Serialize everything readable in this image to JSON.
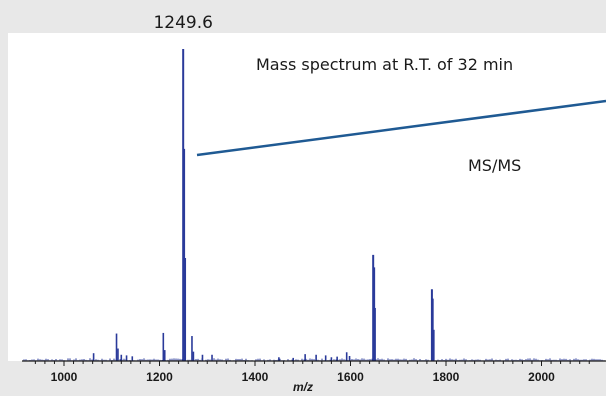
{
  "chart_data": {
    "type": "bar",
    "title": "",
    "xlabel": "m/z",
    "ylabel": "",
    "xlim": [
      900,
      2120
    ],
    "ylim": [
      0,
      100
    ],
    "grid": false,
    "x_ticks": [
      1000,
      1200,
      1400,
      1600,
      1800,
      2000
    ],
    "x_tick_labels": [
      "1000",
      "1200",
      "1400",
      "1600",
      "1800",
      "2000"
    ],
    "peak_label": {
      "x": 1249.6,
      "text": "1249.6"
    },
    "annotations": [
      {
        "text": "Mass spectrum at R.T. of 32 min"
      },
      {
        "text": "MS/MS"
      }
    ],
    "series": [
      {
        "color": "#2a3a9a",
        "peaks": [
          {
            "x": 1062,
            "y": 2.5
          },
          {
            "x": 1110,
            "y": 8.8
          },
          {
            "x": 1113,
            "y": 4.0
          },
          {
            "x": 1120,
            "y": 2.0
          },
          {
            "x": 1131,
            "y": 1.8
          },
          {
            "x": 1143,
            "y": 1.5
          },
          {
            "x": 1208,
            "y": 9.0
          },
          {
            "x": 1211,
            "y": 3.5
          },
          {
            "x": 1249.6,
            "y": 100
          },
          {
            "x": 1251.5,
            "y": 68
          },
          {
            "x": 1253.5,
            "y": 33
          },
          {
            "x": 1268,
            "y": 8.0
          },
          {
            "x": 1271,
            "y": 3.0
          },
          {
            "x": 1290,
            "y": 2.0
          },
          {
            "x": 1310,
            "y": 2.0
          },
          {
            "x": 1450,
            "y": 1.2
          },
          {
            "x": 1480,
            "y": 1.0
          },
          {
            "x": 1505,
            "y": 2.2
          },
          {
            "x": 1528,
            "y": 2.0
          },
          {
            "x": 1548,
            "y": 1.8
          },
          {
            "x": 1560,
            "y": 1.2
          },
          {
            "x": 1572,
            "y": 1.4
          },
          {
            "x": 1592,
            "y": 2.8
          },
          {
            "x": 1598,
            "y": 1.6
          },
          {
            "x": 1647.5,
            "y": 34
          },
          {
            "x": 1649.5,
            "y": 30
          },
          {
            "x": 1651.5,
            "y": 17
          },
          {
            "x": 1770.5,
            "y": 23
          },
          {
            "x": 1772.5,
            "y": 20
          },
          {
            "x": 1774.5,
            "y": 10
          }
        ]
      }
    ]
  },
  "colors": {
    "background": "#e8e8e8",
    "plot_background": "#ffffff",
    "peak_color": "#2a3a9a",
    "callout_line": "#1f5a93"
  }
}
